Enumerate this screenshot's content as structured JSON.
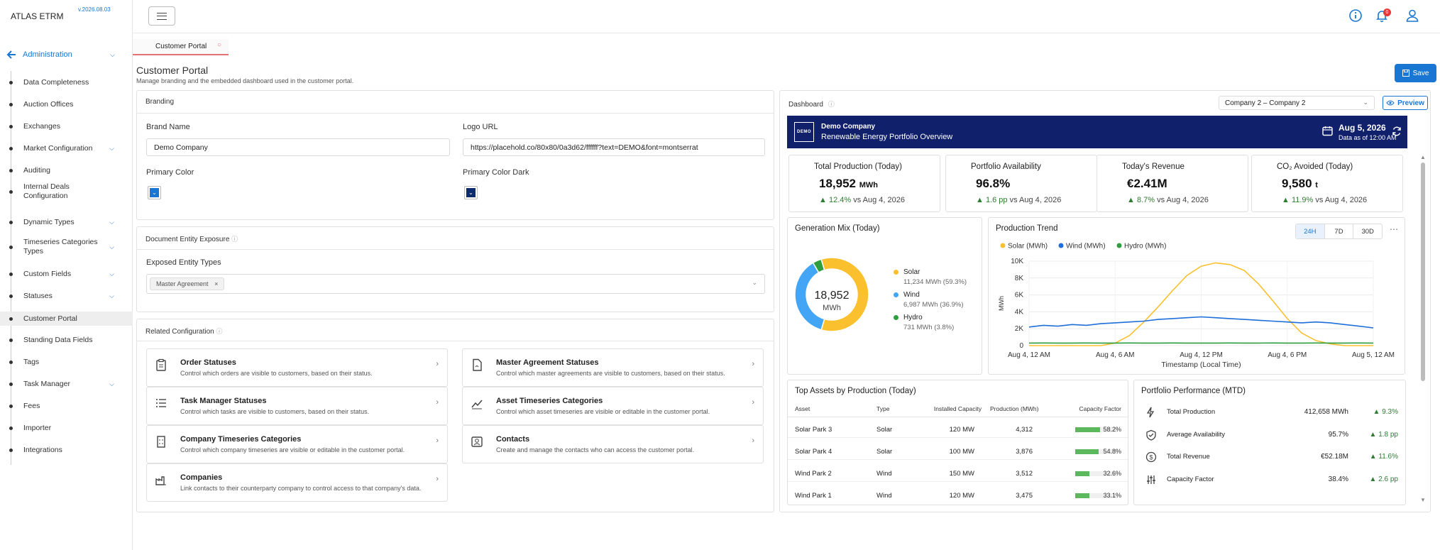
{
  "app": {
    "name": "ATLAS ETRM",
    "version": "v.2026.08.03"
  },
  "sidebar": {
    "section": "Administration",
    "items": [
      {
        "label": "Data Completeness",
        "chevron": false
      },
      {
        "label": "Auction Offices",
        "chevron": false
      },
      {
        "label": "Exchanges",
        "chevron": false
      },
      {
        "label": "Market Configuration",
        "chevron": true
      },
      {
        "label": "Auditing",
        "chevron": false
      },
      {
        "label": "Internal Deals Configuration",
        "chevron": false
      },
      {
        "label": "Dynamic Types",
        "chevron": true
      },
      {
        "label": "Timeseries Categories Types",
        "chevron": true
      },
      {
        "label": "Custom Fields",
        "chevron": true
      },
      {
        "label": "Statuses",
        "chevron": true
      },
      {
        "label": "Customer Portal",
        "chevron": false,
        "active": true
      },
      {
        "label": "Standing Data Fields",
        "chevron": false
      },
      {
        "label": "Tags",
        "chevron": false
      },
      {
        "label": "Task Manager",
        "chevron": true
      },
      {
        "label": "Fees",
        "chevron": false
      },
      {
        "label": "Importer",
        "chevron": false
      },
      {
        "label": "Integrations",
        "chevron": false
      }
    ]
  },
  "topbar": {
    "notification_count": "0"
  },
  "tab": {
    "label": "Customer Portal"
  },
  "page": {
    "title": "Customer Portal",
    "subtitle": "Manage branding and the embedded dashboard used in the customer portal.",
    "save_label": "Save"
  },
  "branding": {
    "header": "Branding",
    "brand_name_label": "Brand Name",
    "brand_name_value": "Demo Company",
    "logo_url_label": "Logo URL",
    "logo_url_value": "https://placehold.co/80x80/0a3d62/ffffff?text=DEMO&font=montserrat",
    "primary_color_label": "Primary Color",
    "primary_color": "#1976d2",
    "primary_color_dark_label": "Primary Color Dark",
    "primary_color_dark": "#0d2b6b"
  },
  "document_exposure": {
    "header": "Document Entity Exposure",
    "field_label": "Exposed Entity Types",
    "chip": "Master Agreement"
  },
  "related": {
    "header": "Related Configuration",
    "items": [
      {
        "title": "Order Statuses",
        "desc": "Control which orders are visible to customers, based on their status.",
        "icon": "clipboard-icon"
      },
      {
        "title": "Master Agreement Statuses",
        "desc": "Control which master agreements are visible to customers, based on their status.",
        "icon": "document-icon"
      },
      {
        "title": "Task Manager Statuses",
        "desc": "Control which tasks are visible to customers, based on their status.",
        "icon": "list-icon"
      },
      {
        "title": "Asset Timeseries Categories",
        "desc": "Control which asset timeseries are visible or editable in the customer portal.",
        "icon": "chart-line-icon"
      },
      {
        "title": "Company Timeseries Categories",
        "desc": "Control which company timeseries are visible or editable in the customer portal.",
        "icon": "building-icon"
      },
      {
        "title": "Contacts",
        "desc": "Create and manage the contacts who can access the customer portal.",
        "icon": "contact-icon"
      },
      {
        "title": "Companies",
        "desc": "Link contacts to their counterparty company to control access to that company's data.",
        "icon": "factory-icon"
      }
    ]
  },
  "dashboard": {
    "header": "Dashboard",
    "company_select": "Company 2 – Company 2",
    "preview_label": "Preview",
    "banner": {
      "logo_text": "DEMO",
      "company": "Demo Company",
      "title": "Renewable Energy Portfolio Overview",
      "date": "Aug 5, 2026",
      "as_of": "Data as of 12:00 AM"
    },
    "kpis": [
      {
        "title": "Total Production (Today)",
        "value": "18,952",
        "unit": "MWh",
        "change": "12.4%",
        "compare": "vs Aug 4, 2026"
      },
      {
        "title": "Portfolio Availability",
        "value": "96.8%",
        "unit": "",
        "change": "1.6 pp",
        "compare": "vs Aug 4, 2026"
      },
      {
        "title": "Today's Revenue",
        "value": "€2.41M",
        "unit": "",
        "change": "8.7%",
        "compare": "vs Aug 4, 2026"
      },
      {
        "title": "CO₂ Avoided (Today)",
        "value": "9,580",
        "unit": "t",
        "change": "11.9%",
        "compare": "vs Aug 4, 2026"
      }
    ],
    "generation_mix": {
      "title": "Generation Mix (Today)",
      "center_value": "18,952",
      "center_unit": "MWh",
      "legend": [
        {
          "name": "Solar",
          "detail": "11,234 MWh (59.3%)",
          "color": "#fbc02d"
        },
        {
          "name": "Wind",
          "detail": "6,987 MWh (36.9%)",
          "color": "#42a5f5"
        },
        {
          "name": "Hydro",
          "detail": "731 MWh (3.8%)",
          "color": "#2e9e3e"
        }
      ]
    },
    "trend": {
      "title": "Production Trend",
      "ranges": [
        "24H",
        "7D",
        "30D"
      ],
      "active_range": "24H",
      "more": "⋯"
    },
    "top_assets": {
      "title": "Top Assets by Production (Today)",
      "columns": [
        "Asset",
        "Type",
        "Installed Capacity",
        "Production (MWh)",
        "Capacity Factor"
      ],
      "rows": [
        {
          "asset": "Solar Park 3",
          "type": "Solar",
          "capacity": "120 MW",
          "production": "4,312",
          "cf": "58.2%",
          "cf_value": 0.582
        },
        {
          "asset": "Solar Park 4",
          "type": "Solar",
          "capacity": "100 MW",
          "production": "3,876",
          "cf": "54.8%",
          "cf_value": 0.548
        },
        {
          "asset": "Wind Park 2",
          "type": "Wind",
          "capacity": "150 MW",
          "production": "3,512",
          "cf": "32.6%",
          "cf_value": 0.326
        },
        {
          "asset": "Wind Park 1",
          "type": "Wind",
          "capacity": "120 MW",
          "production": "3,475",
          "cf": "33.1%",
          "cf_value": 0.331
        }
      ]
    },
    "performance": {
      "title": "Portfolio Performance (MTD)",
      "rows": [
        {
          "label": "Total Production",
          "value": "412,658 MWh",
          "change": "9.3%",
          "icon": "bolt-icon"
        },
        {
          "label": "Average Availability",
          "value": "95.7%",
          "change": "1.8 pp",
          "icon": "shield-icon"
        },
        {
          "label": "Total Revenue",
          "value": "€52.18M",
          "change": "11.6%",
          "icon": "dollar-icon"
        },
        {
          "label": "Capacity Factor",
          "value": "38.4%",
          "change": "2.6 pp",
          "icon": "sliders-icon"
        }
      ]
    }
  },
  "chart_data": [
    {
      "type": "pie",
      "title": "Generation Mix (Today)",
      "categories": [
        "Solar",
        "Wind",
        "Hydro"
      ],
      "values": [
        11234,
        6987,
        731
      ],
      "colors": [
        "#fbc02d",
        "#42a5f5",
        "#2e9e3e"
      ]
    },
    {
      "type": "line",
      "title": "Production Trend",
      "xlabel": "Timestamp (Local Time)",
      "ylabel": "MWh",
      "x_ticks": [
        "Aug 4, 12 AM",
        "Aug 4, 6 AM",
        "Aug 4, 12 PM",
        "Aug 4, 6 PM",
        "Aug 5, 12 AM"
      ],
      "y_ticks": [
        "0",
        "2K",
        "4K",
        "6K",
        "8K",
        "10K"
      ],
      "ylim": [
        0,
        10000
      ],
      "x_hours": [
        0,
        1,
        2,
        3,
        4,
        5,
        6,
        7,
        8,
        9,
        10,
        11,
        12,
        13,
        14,
        15,
        16,
        17,
        18,
        19,
        20,
        21,
        22,
        23,
        24
      ],
      "series": [
        {
          "name": "Solar (MWh)",
          "color": "#fbc02d",
          "values": [
            0,
            0,
            0,
            0,
            0,
            0,
            300,
            1200,
            2800,
            4600,
            6500,
            8300,
            9400,
            9800,
            9600,
            8900,
            7300,
            5300,
            3200,
            1500,
            600,
            200,
            0,
            0,
            0
          ]
        },
        {
          "name": "Wind (MWh)",
          "color": "#1e6fd9",
          "values": [
            2200,
            2400,
            2300,
            2500,
            2400,
            2600,
            2700,
            2800,
            2900,
            3100,
            3200,
            3300,
            3400,
            3300,
            3200,
            3100,
            3000,
            2900,
            2800,
            2700,
            2800,
            2700,
            2500,
            2300,
            2100
          ]
        },
        {
          "name": "Hydro (MWh)",
          "color": "#2e9e3e",
          "values": [
            300,
            310,
            305,
            300,
            310,
            305,
            300,
            310,
            300,
            305,
            310,
            300,
            305,
            300,
            310,
            305,
            300,
            310,
            305,
            300,
            310,
            305,
            300,
            310,
            300
          ]
        }
      ],
      "legend_position": "top-left",
      "grid": true
    }
  ]
}
